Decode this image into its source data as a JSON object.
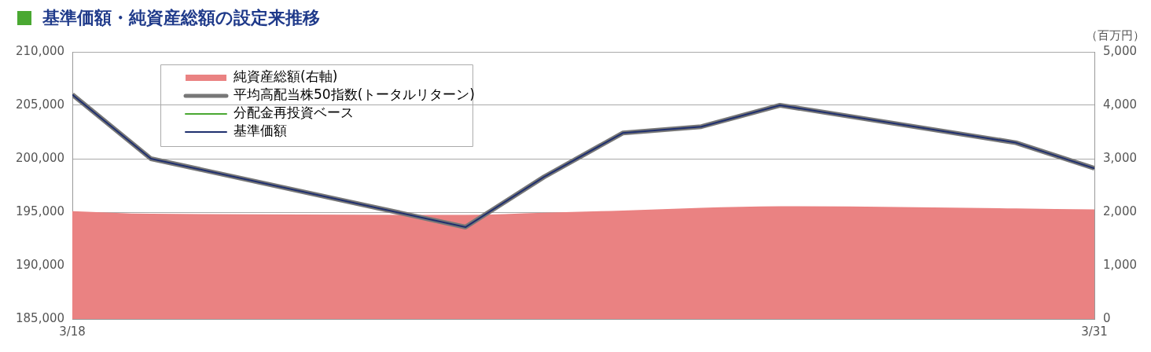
{
  "chart_data": {
    "type": "line",
    "title": "基準価額・純資産総額の設定来推移",
    "y2label": "（百万円）",
    "x": [
      "--03-18",
      "--03-19",
      "--03-23",
      "--03-24",
      "--03-25",
      "--03-26",
      "--03-27",
      "--03-30",
      "--03-31"
    ],
    "series": [
      {
        "name": "純資産総額(右軸)",
        "type": "area",
        "axis": "y2",
        "color": "#ea8282",
        "values": [
          2020,
          1970,
          1950,
          1990,
          2030,
          2080,
          2110,
          2070,
          2050
        ]
      },
      {
        "name": "平均高配当株50指数(トータルリターン)",
        "color": "#777777",
        "values": [
          206000,
          200000,
          193600,
          198300,
          202400,
          203000,
          205000,
          201500,
          199100
        ]
      },
      {
        "name": "分配金再投資ベース",
        "color": "#4aa832",
        "values": [
          null,
          null,
          null,
          null,
          null,
          null,
          null,
          null,
          null
        ]
      },
      {
        "name": "基準価額",
        "color": "#1f2f6e",
        "values": [
          206000,
          200000,
          193600,
          198300,
          202400,
          203000,
          205000,
          201500,
          199100
        ]
      }
    ],
    "xlim": [
      "--03-18",
      "--03-31"
    ],
    "xticks": [
      {
        "value": "--03-18",
        "label": "3/18"
      },
      {
        "value": "--03-31",
        "label": "3/31"
      }
    ],
    "ylim": [
      185000,
      210000
    ],
    "yticks": [
      {
        "value": 185000,
        "label": "185,000"
      },
      {
        "value": 190000,
        "label": "190,000"
      },
      {
        "value": 195000,
        "label": "195,000"
      },
      {
        "value": 200000,
        "label": "200,000"
      },
      {
        "value": 205000,
        "label": "205,000"
      },
      {
        "value": 210000,
        "label": "210,000"
      }
    ],
    "y2lim": [
      0,
      5000
    ],
    "y2ticks": [
      0,
      {
        "value": 1000,
        "label": "1,000"
      },
      {
        "value": 2000,
        "label": "2,000"
      },
      {
        "value": 3000,
        "label": "3,000"
      },
      {
        "value": 4000,
        "label": "4,000"
      },
      {
        "value": 5000,
        "label": "5,000"
      }
    ],
    "grid": "y",
    "legend": "top left",
    "marker": "none",
    "line_style": "solid"
  }
}
